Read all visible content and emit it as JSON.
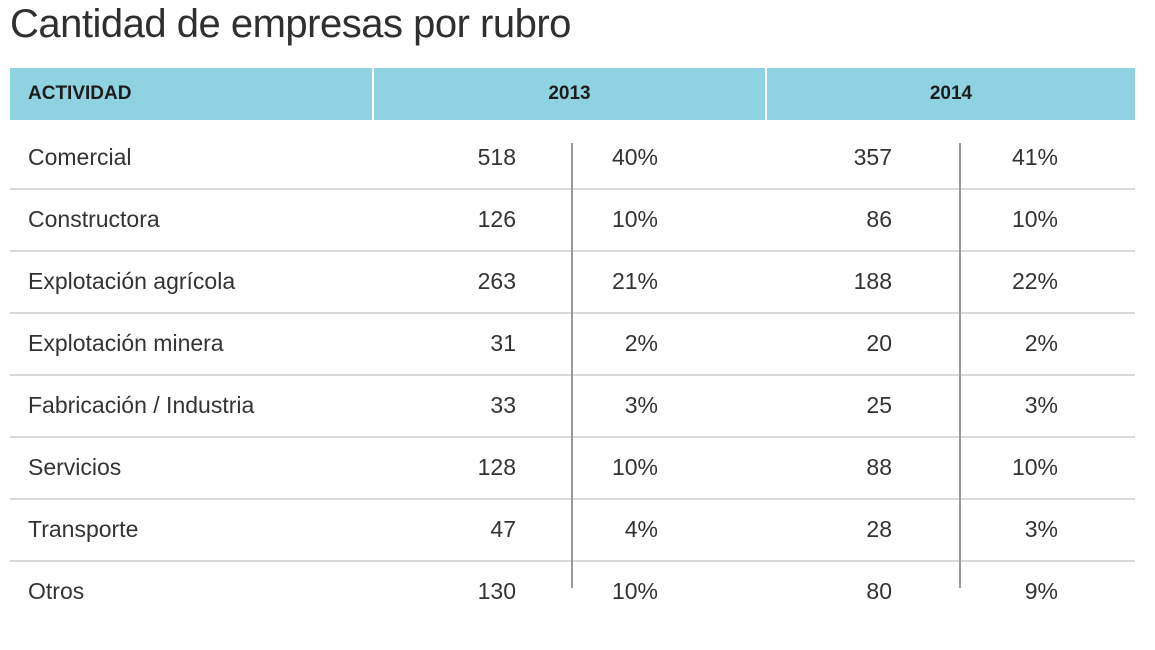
{
  "title": "Cantidad de empresas por rubro",
  "header": {
    "activity": "ACTIVIDAD",
    "year1": "2013",
    "year2": "2014"
  },
  "colors": {
    "header_bg": "#8fd3e2",
    "row_divider": "#d8d8d8",
    "column_divider": "#9a9a9a"
  },
  "rows": [
    {
      "activity": "Comercial",
      "n2013": "518",
      "p2013": "40%",
      "n2014": "357",
      "p2014": "41%"
    },
    {
      "activity": "Constructora",
      "n2013": "126",
      "p2013": "10%",
      "n2014": "86",
      "p2014": "10%"
    },
    {
      "activity": "Explotación agrícola",
      "n2013": "263",
      "p2013": "21%",
      "n2014": "188",
      "p2014": "22%"
    },
    {
      "activity": "Explotación minera",
      "n2013": "31",
      "p2013": "2%",
      "n2014": "20",
      "p2014": "2%"
    },
    {
      "activity": "Fabricación / Industria",
      "n2013": "33",
      "p2013": "3%",
      "n2014": "25",
      "p2014": "3%"
    },
    {
      "activity": "Servicios",
      "n2013": "128",
      "p2013": "10%",
      "n2014": "88",
      "p2014": "10%"
    },
    {
      "activity": "Transporte",
      "n2013": "47",
      "p2013": "4%",
      "n2014": "28",
      "p2014": "3%"
    },
    {
      "activity": "Otros",
      "n2013": "130",
      "p2013": "10%",
      "n2014": "80",
      "p2014": "9%"
    }
  ]
}
